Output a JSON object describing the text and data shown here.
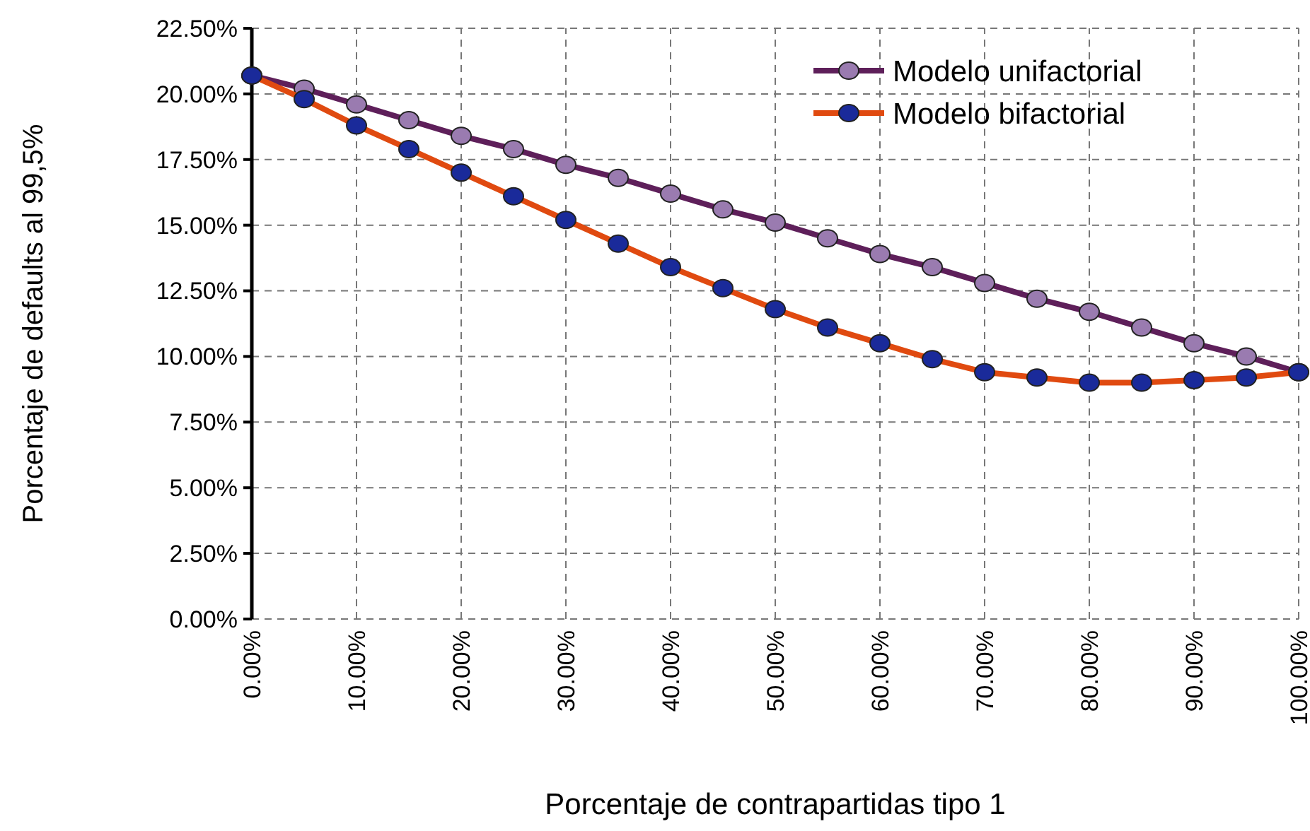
{
  "chart_data": {
    "type": "line",
    "xlabel": "Porcentaje de contrapartidas tipo 1",
    "ylabel": "Porcentaje de defaults al 99,5%",
    "x": [
      0,
      5,
      10,
      15,
      20,
      25,
      30,
      35,
      40,
      45,
      50,
      55,
      60,
      65,
      70,
      75,
      80,
      85,
      90,
      95,
      100
    ],
    "series": [
      {
        "name": "Modelo unifactorial",
        "color": "#5e1f5a",
        "values": [
          20.7,
          20.2,
          19.6,
          19.0,
          18.4,
          17.9,
          17.3,
          16.8,
          16.2,
          15.6,
          15.1,
          14.5,
          13.9,
          13.4,
          12.8,
          12.2,
          11.7,
          11.1,
          10.5,
          10.0,
          9.4
        ]
      },
      {
        "name": "Modelo bifactorial",
        "color": "#e04a10",
        "values": [
          20.7,
          19.8,
          18.8,
          17.9,
          17.0,
          16.1,
          15.2,
          14.3,
          13.4,
          12.6,
          11.8,
          11.1,
          10.5,
          9.9,
          9.4,
          9.2,
          9.0,
          9.0,
          9.1,
          9.2,
          9.4
        ]
      }
    ],
    "xlim": [
      0,
      100
    ],
    "xticks": [
      {
        "value": 0,
        "label": "0.00%"
      },
      {
        "value": 10,
        "label": "10.00%"
      },
      {
        "value": 20,
        "label": "20.00%"
      },
      {
        "value": 30,
        "label": "30.00%"
      },
      {
        "value": 40,
        "label": "40.00%"
      },
      {
        "value": 50,
        "label": "50.00%"
      },
      {
        "value": 60,
        "label": "60.00%"
      },
      {
        "value": 70,
        "label": "70.00%"
      },
      {
        "value": 80,
        "label": "80.00%"
      },
      {
        "value": 90,
        "label": "90.00%"
      },
      {
        "value": 100,
        "label": "100.00%"
      }
    ],
    "ylim": [
      0,
      22.5
    ],
    "yticks": [
      {
        "value": 0,
        "label": "0.00%"
      },
      {
        "value": 2.5,
        "label": "2.50%"
      },
      {
        "value": 5,
        "label": "5.00%"
      },
      {
        "value": 7.5,
        "label": "7.50%"
      },
      {
        "value": 10,
        "label": "10.00%"
      },
      {
        "value": 12.5,
        "label": "12.50%"
      },
      {
        "value": 15,
        "label": "15.00%"
      },
      {
        "value": 17.5,
        "label": "17.50%"
      },
      {
        "value": 20,
        "label": "20.00%"
      },
      {
        "value": 22.5,
        "label": "22.50%"
      }
    ],
    "grid": true,
    "legend": "top right",
    "marker": "circle",
    "line_style": "solid"
  }
}
